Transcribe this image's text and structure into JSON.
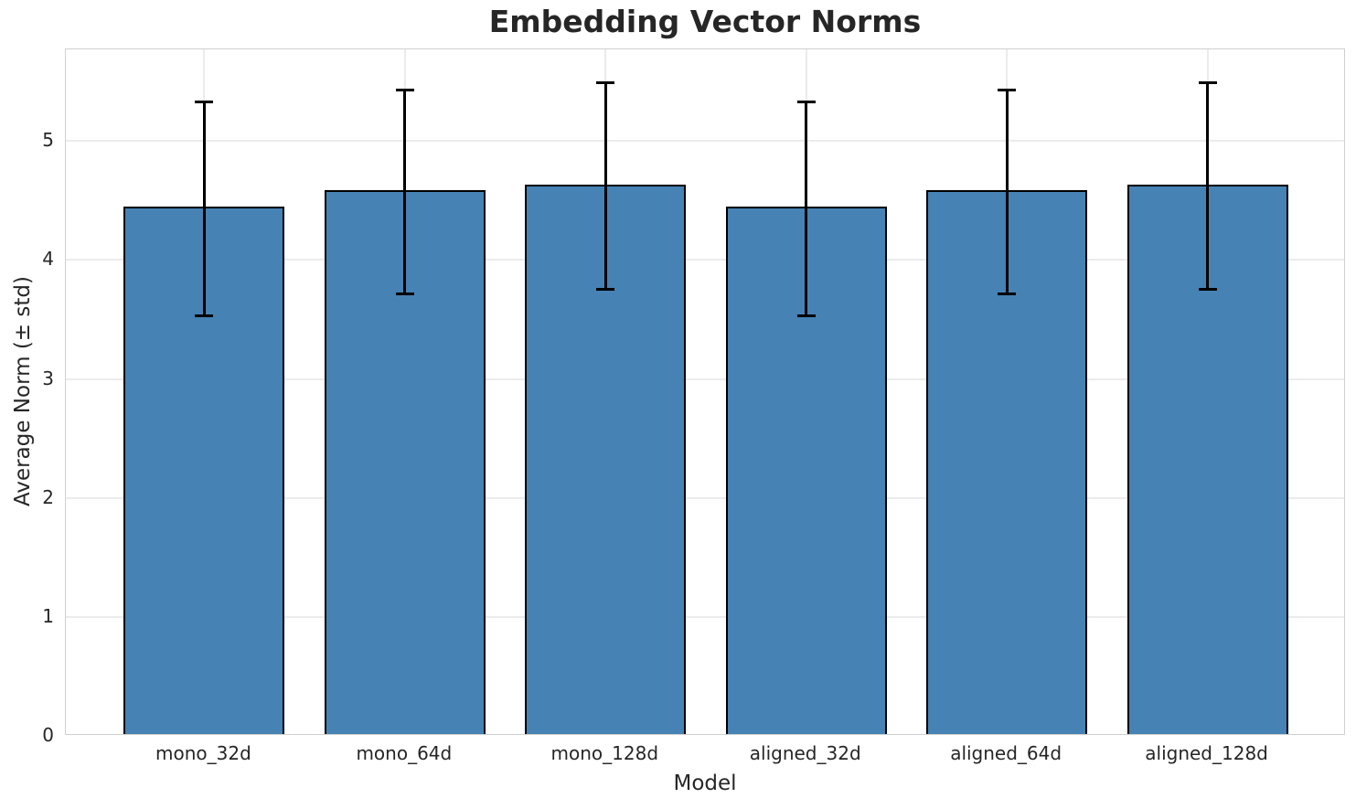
{
  "chart_data": {
    "type": "bar",
    "title": "Embedding Vector Norms",
    "xlabel": "Model",
    "ylabel": "Average Norm (± std)",
    "categories": [
      "mono_32d",
      "mono_64d",
      "mono_128d",
      "aligned_32d",
      "aligned_64d",
      "aligned_128d"
    ],
    "values": [
      4.43,
      4.57,
      4.62,
      4.43,
      4.57,
      4.62
    ],
    "errors": [
      0.91,
      0.87,
      0.88,
      0.91,
      0.87,
      0.88
    ],
    "error_type": "std",
    "ylim": [
      0,
      5.77
    ],
    "yticks": [
      0,
      1,
      2,
      3,
      4,
      5
    ],
    "grid": true,
    "legend": false,
    "bar_color": "#4682B4",
    "bar_edge_color": "#000000",
    "error_color": "#000000",
    "grid_color": "#ebebeb",
    "spine_color": "#d0d0d0",
    "text_color": "#262626",
    "background_color": "#ffffff"
  }
}
